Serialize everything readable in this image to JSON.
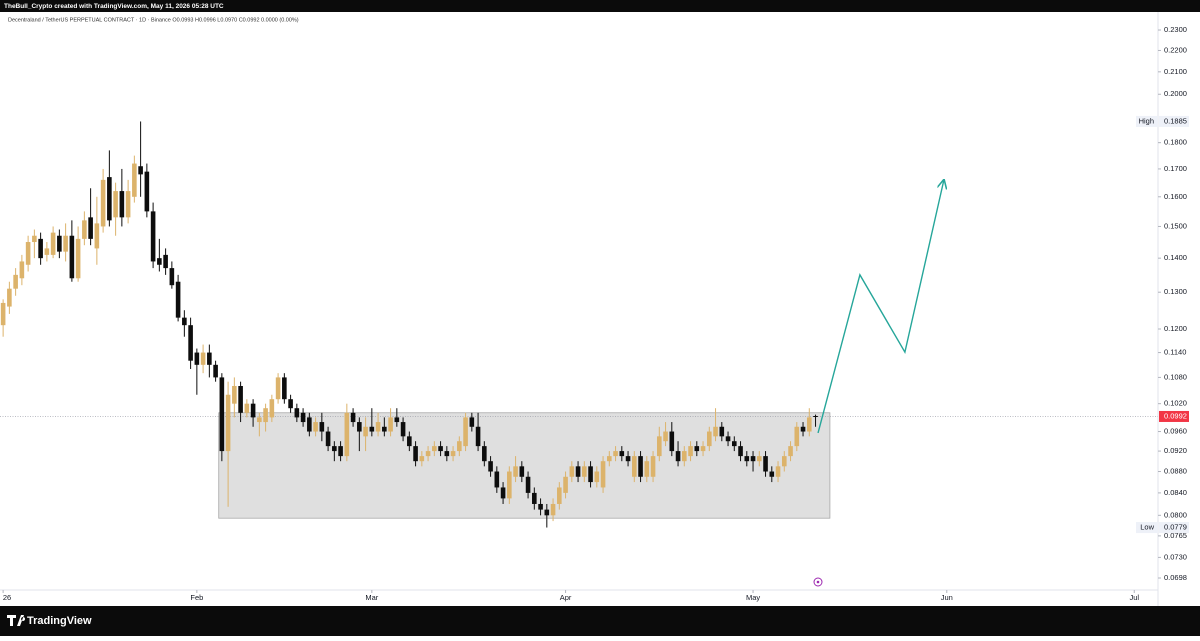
{
  "credit": "TheBull_Crypto created with TradingView.com, May 11, 2026 05:28 UTC",
  "brand": "TradingView",
  "chart_data": {
    "type": "candlestick",
    "title": "Decentraland / TetherUS PERPETUAL CONTRACT · 1D · Binance  O0.0993 H0.0996 L0.0970 C0.0992 0.0000 (0.00%)",
    "log_scale": true,
    "grid": false,
    "up_color": "#dcb36b",
    "down_color": "#0d0d0d",
    "xlim": [
      -0.5,
      184.8
    ],
    "xticks": [
      {
        "value": 0,
        "label": "26"
      },
      {
        "value": 31,
        "label": "Feb"
      },
      {
        "value": 59,
        "label": "Mar"
      },
      {
        "value": 90,
        "label": "Apr"
      },
      {
        "value": 120,
        "label": "May"
      },
      {
        "value": 151,
        "label": "Jun"
      },
      {
        "value": 181,
        "label": "Jul"
      }
    ],
    "ylim": [
      0.068,
      0.2392
    ],
    "yticks": [
      {
        "value": 0.23,
        "label": "0.2300"
      },
      {
        "value": 0.22,
        "label": "0.2200"
      },
      {
        "value": 0.21,
        "label": "0.2100"
      },
      {
        "value": 0.2,
        "label": "0.2000"
      },
      {
        "value": 0.18,
        "label": "0.1800"
      },
      {
        "value": 0.17,
        "label": "0.1700"
      },
      {
        "value": 0.16,
        "label": "0.1600"
      },
      {
        "value": 0.15,
        "label": "0.1500"
      },
      {
        "value": 0.14,
        "label": "0.1400"
      },
      {
        "value": 0.13,
        "label": "0.1300"
      },
      {
        "value": 0.12,
        "label": "0.1200"
      },
      {
        "value": 0.114,
        "label": "0.1140"
      },
      {
        "value": 0.108,
        "label": "0.1080"
      },
      {
        "value": 0.102,
        "label": "0.1020"
      },
      {
        "value": 0.096,
        "label": "0.0960"
      },
      {
        "value": 0.092,
        "label": "0.0920"
      },
      {
        "value": 0.088,
        "label": "0.0880"
      },
      {
        "value": 0.084,
        "label": "0.0840"
      },
      {
        "value": 0.08,
        "label": "0.0800"
      },
      {
        "value": 0.0765,
        "label": "0.0765"
      },
      {
        "value": 0.073,
        "label": "0.0730"
      },
      {
        "value": 0.0698,
        "label": "0.0698"
      }
    ],
    "open": [
      0.121,
      0.126,
      0.131,
      0.134,
      0.138,
      0.145,
      0.146,
      0.141,
      0.141,
      0.147,
      0.142,
      0.147,
      0.134,
      0.146,
      0.153,
      0.143,
      0.15,
      0.167,
      0.153,
      0.162,
      0.153,
      0.16,
      0.171,
      0.169,
      0.155,
      0.14,
      0.141,
      0.137,
      0.133,
      0.123,
      0.121,
      0.114,
      0.111,
      0.114,
      0.111,
      0.108,
      0.092,
      0.102,
      0.106,
      0.1,
      0.102,
      0.098,
      0.098,
      0.099,
      0.103,
      0.108,
      0.103,
      0.101,
      0.1,
      0.099,
      0.096,
      0.098,
      0.096,
      0.093,
      0.093,
      0.091,
      0.1,
      0.098,
      0.095,
      0.097,
      0.096,
      0.097,
      0.096,
      0.099,
      0.098,
      0.095,
      0.093,
      0.09,
      0.091,
      0.092,
      0.093,
      0.092,
      0.091,
      0.092,
      0.093,
      0.099,
      0.097,
      0.093,
      0.09,
      0.088,
      0.085,
      0.083,
      0.087,
      0.089,
      0.087,
      0.084,
      0.082,
      0.081,
      0.08,
      0.082,
      0.084,
      0.087,
      0.089,
      0.087,
      0.089,
      0.086,
      0.085,
      0.09,
      0.091,
      0.092,
      0.091,
      0.087,
      0.091,
      0.087,
      0.087,
      0.091,
      0.094,
      0.096,
      0.092,
      0.09,
      0.091,
      0.093,
      0.092,
      0.093,
      0.095,
      0.097,
      0.095,
      0.094,
      0.093,
      0.091,
      0.091,
      0.09,
      0.091,
      0.088,
      0.087,
      0.089,
      0.091,
      0.093,
      0.097,
      0.096,
      0.0993
    ],
    "high": [
      0.128,
      0.133,
      0.137,
      0.141,
      0.147,
      0.149,
      0.148,
      0.145,
      0.15,
      0.149,
      0.151,
      0.152,
      0.15,
      0.155,
      0.163,
      0.16,
      0.17,
      0.177,
      0.165,
      0.17,
      0.166,
      0.175,
      0.1885,
      0.172,
      0.158,
      0.146,
      0.143,
      0.139,
      0.135,
      0.125,
      0.123,
      0.115,
      0.116,
      0.116,
      0.112,
      0.109,
      0.107,
      0.108,
      0.107,
      0.103,
      0.103,
      0.1,
      0.102,
      0.104,
      0.109,
      0.109,
      0.104,
      0.102,
      0.101,
      0.1,
      0.099,
      0.1,
      0.097,
      0.094,
      0.094,
      0.102,
      0.101,
      0.099,
      0.099,
      0.101,
      0.1,
      0.099,
      0.101,
      0.101,
      0.099,
      0.096,
      0.094,
      0.092,
      0.093,
      0.094,
      0.094,
      0.093,
      0.093,
      0.095,
      0.1,
      0.1,
      0.1,
      0.094,
      0.091,
      0.089,
      0.086,
      0.089,
      0.091,
      0.09,
      0.088,
      0.085,
      0.083,
      0.082,
      0.083,
      0.086,
      0.088,
      0.09,
      0.09,
      0.09,
      0.09,
      0.089,
      0.091,
      0.092,
      0.093,
      0.093,
      0.092,
      0.092,
      0.092,
      0.091,
      0.092,
      0.097,
      0.098,
      0.098,
      0.094,
      0.093,
      0.094,
      0.094,
      0.094,
      0.097,
      0.101,
      0.098,
      0.096,
      0.095,
      0.094,
      0.092,
      0.092,
      0.092,
      0.092,
      0.089,
      0.09,
      0.092,
      0.094,
      0.098,
      0.098,
      0.101,
      0.0996
    ],
    "low": [
      0.118,
      0.124,
      0.129,
      0.132,
      0.136,
      0.14,
      0.138,
      0.139,
      0.14,
      0.14,
      0.139,
      0.133,
      0.133,
      0.144,
      0.144,
      0.138,
      0.148,
      0.15,
      0.147,
      0.15,
      0.151,
      0.158,
      0.16,
      0.153,
      0.137,
      0.136,
      0.135,
      0.131,
      0.122,
      0.118,
      0.11,
      0.104,
      0.109,
      0.108,
      0.107,
      0.09,
      0.0815,
      0.099,
      0.098,
      0.099,
      0.097,
      0.095,
      0.096,
      0.098,
      0.102,
      0.102,
      0.1,
      0.098,
      0.097,
      0.095,
      0.095,
      0.094,
      0.092,
      0.09,
      0.09,
      0.09,
      0.097,
      0.092,
      0.092,
      0.095,
      0.095,
      0.095,
      0.095,
      0.097,
      0.094,
      0.092,
      0.089,
      0.089,
      0.09,
      0.091,
      0.091,
      0.09,
      0.09,
      0.091,
      0.092,
      0.096,
      0.092,
      0.089,
      0.087,
      0.084,
      0.082,
      0.082,
      0.086,
      0.086,
      0.083,
      0.081,
      0.08,
      0.0779,
      0.079,
      0.081,
      0.083,
      0.086,
      0.086,
      0.086,
      0.085,
      0.085,
      0.084,
      0.089,
      0.09,
      0.09,
      0.089,
      0.086,
      0.086,
      0.086,
      0.086,
      0.09,
      0.093,
      0.091,
      0.089,
      0.089,
      0.09,
      0.091,
      0.091,
      0.092,
      0.094,
      0.094,
      0.093,
      0.092,
      0.09,
      0.089,
      0.088,
      0.089,
      0.087,
      0.086,
      0.086,
      0.088,
      0.09,
      0.092,
      0.095,
      0.095,
      0.097
    ],
    "close": [
      0.127,
      0.131,
      0.135,
      0.139,
      0.145,
      0.147,
      0.14,
      0.143,
      0.148,
      0.142,
      0.147,
      0.134,
      0.146,
      0.152,
      0.146,
      0.151,
      0.166,
      0.152,
      0.162,
      0.153,
      0.162,
      0.172,
      0.168,
      0.155,
      0.139,
      0.138,
      0.137,
      0.132,
      0.123,
      0.121,
      0.112,
      0.111,
      0.114,
      0.111,
      0.108,
      0.092,
      0.104,
      0.106,
      0.1,
      0.102,
      0.099,
      0.099,
      0.101,
      0.103,
      0.108,
      0.103,
      0.101,
      0.099,
      0.098,
      0.096,
      0.098,
      0.096,
      0.093,
      0.092,
      0.091,
      0.1,
      0.098,
      0.096,
      0.097,
      0.096,
      0.098,
      0.096,
      0.099,
      0.098,
      0.095,
      0.093,
      0.09,
      0.091,
      0.092,
      0.093,
      0.092,
      0.091,
      0.092,
      0.094,
      0.099,
      0.097,
      0.093,
      0.09,
      0.088,
      0.085,
      0.083,
      0.088,
      0.089,
      0.087,
      0.084,
      0.082,
      0.081,
      0.08,
      0.082,
      0.085,
      0.087,
      0.089,
      0.087,
      0.089,
      0.086,
      0.088,
      0.09,
      0.091,
      0.092,
      0.091,
      0.09,
      0.091,
      0.087,
      0.09,
      0.091,
      0.095,
      0.096,
      0.092,
      0.09,
      0.092,
      0.093,
      0.092,
      0.093,
      0.096,
      0.097,
      0.095,
      0.094,
      0.093,
      0.091,
      0.09,
      0.09,
      0.091,
      0.088,
      0.087,
      0.089,
      0.091,
      0.093,
      0.097,
      0.096,
      0.099,
      0.0992
    ],
    "range_box": {
      "xlim": [
        34.5,
        132.3
      ],
      "ylim": [
        0.0795,
        0.1
      ],
      "color": "#d9d9d9"
    },
    "projection": {
      "color": "#26a69a",
      "x": [
        130.4,
        137.1,
        144.3,
        150.5
      ],
      "y": [
        0.0957,
        0.135,
        0.1141,
        0.1656
      ]
    },
    "last_price": {
      "value": 0.0992,
      "color": "#f23645"
    },
    "high_marker": {
      "label": "High",
      "value": 0.1885
    },
    "low_marker": {
      "label": "Low",
      "value": 0.0779
    }
  }
}
